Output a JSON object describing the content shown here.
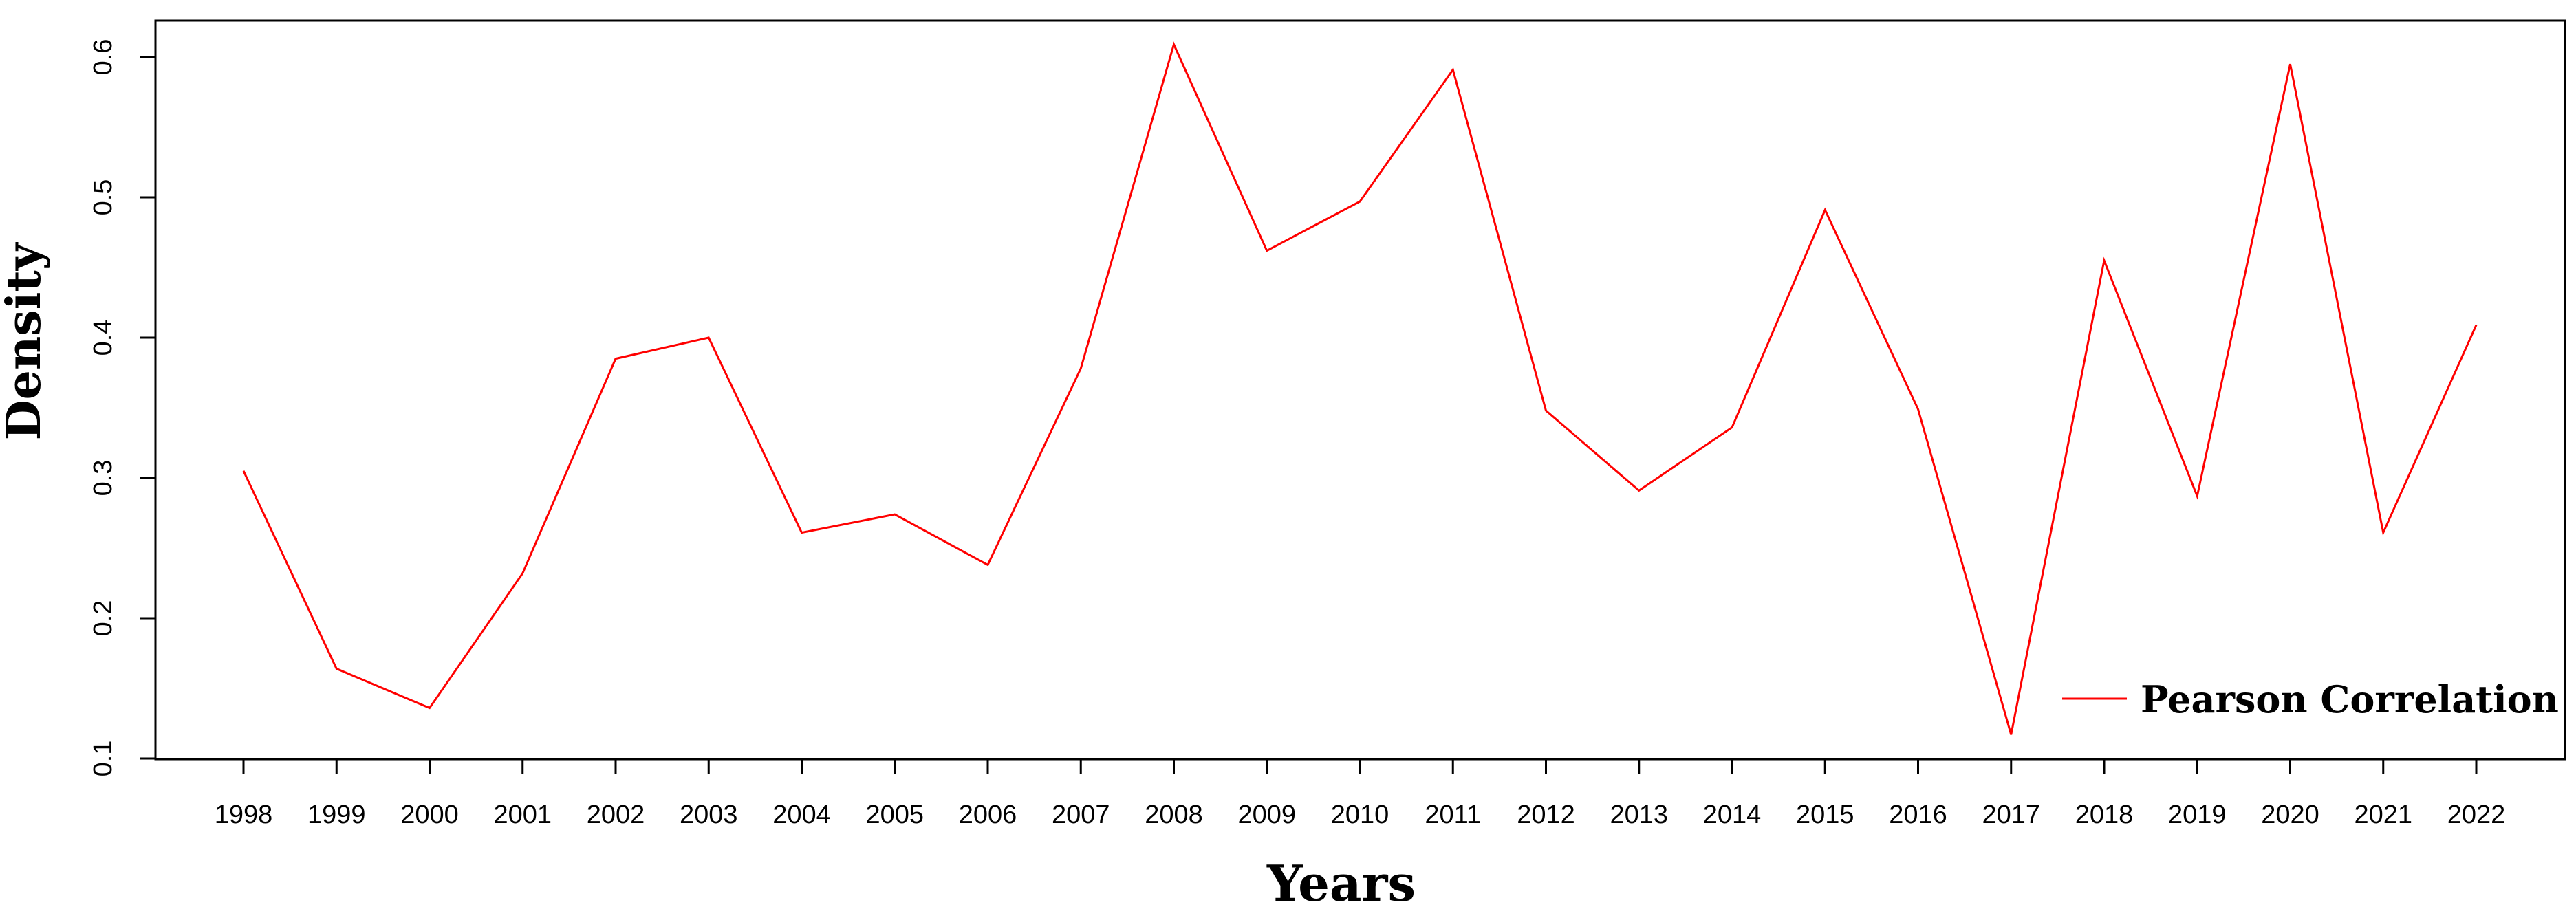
{
  "chart_data": {
    "type": "line",
    "title": "",
    "xlabel": "Years",
    "ylabel": "Density",
    "x": [
      "1998",
      "1999",
      "2000",
      "2001",
      "2002",
      "2003",
      "2004",
      "2005",
      "2006",
      "2007",
      "2008",
      "2009",
      "2010",
      "2011",
      "2012",
      "2013",
      "2014",
      "2015",
      "2016",
      "2017",
      "2018",
      "2019",
      "2020",
      "2021",
      "2022"
    ],
    "series": [
      {
        "name": "Pearson Correlation",
        "color": "#ff0000",
        "values": [
          0.305,
          0.164,
          0.136,
          0.232,
          0.385,
          0.4,
          0.261,
          0.274,
          0.238,
          0.378,
          0.609,
          0.462,
          0.497,
          0.591,
          0.348,
          0.291,
          0.336,
          0.491,
          0.349,
          0.117,
          0.455,
          0.287,
          0.595,
          0.261,
          0.409
        ]
      }
    ],
    "yticks": [
      "0.1",
      "0.2",
      "0.3",
      "0.4",
      "0.5",
      "0.6"
    ],
    "ylim": [
      0.1,
      0.6
    ],
    "grid": false,
    "legend_position": "bottom-right"
  }
}
